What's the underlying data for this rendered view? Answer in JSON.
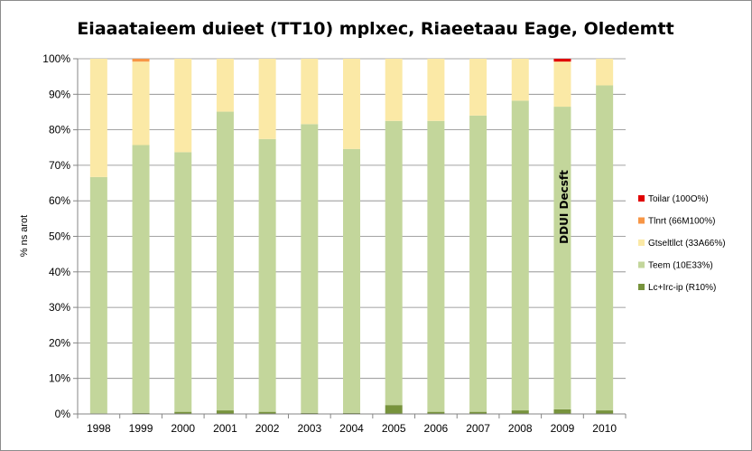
{
  "chart_data": {
    "type": "bar",
    "stacked": true,
    "title": "Eiaaataieem duieet (TT10) mplxec, Riaeetaau Eage, Oledemtt",
    "ylabel": "% ns arot",
    "xlabel": "",
    "ylim": [
      0,
      100
    ],
    "yticks": [
      "0%",
      "10%",
      "20%",
      "30%",
      "40%",
      "50%",
      "60%",
      "70%",
      "80%",
      "90%",
      "100%"
    ],
    "grid": true,
    "legend_position": "right",
    "categories": [
      "1998",
      "1999",
      "2000",
      "2001",
      "2002",
      "2003",
      "2004",
      "2005",
      "2006",
      "2007",
      "2008",
      "2009",
      "2010"
    ],
    "series": [
      {
        "name": "Lc+Irc-ip (R10%)",
        "color": "#77933c",
        "values": [
          0,
          0.3,
          0.6,
          1.0,
          0.6,
          0.3,
          0.3,
          2.5,
          0.6,
          0.6,
          1.0,
          1.3,
          1.0
        ]
      },
      {
        "name": "Teem (10E33%)",
        "color": "#c3d69b",
        "values": [
          66.7,
          75.4,
          73.1,
          84.1,
          76.8,
          81.3,
          74.3,
          80.0,
          81.9,
          83.4,
          87.2,
          85.2,
          91.5
        ]
      },
      {
        "name": "Gtseltllct (33A66%)",
        "color": "#fbe9a6",
        "values": [
          33.3,
          23.5,
          26.3,
          14.9,
          22.6,
          18.4,
          25.4,
          17.5,
          17.5,
          16.0,
          11.8,
          12.7,
          7.5
        ]
      },
      {
        "name": "Tlnrt (66M100%)",
        "color": "#f79646",
        "values": [
          0,
          0.8,
          0,
          0,
          0,
          0,
          0,
          0,
          0,
          0,
          0,
          0,
          0
        ]
      },
      {
        "name": "Toilar (100O%)",
        "color": "#e00000",
        "values": [
          0,
          0,
          0,
          0,
          0,
          0,
          0,
          0,
          0,
          0,
          0,
          0.8,
          0
        ]
      }
    ],
    "annotations": [
      {
        "text": "DDUI Decsft",
        "category": "2009",
        "orientation": "vertical"
      }
    ]
  }
}
